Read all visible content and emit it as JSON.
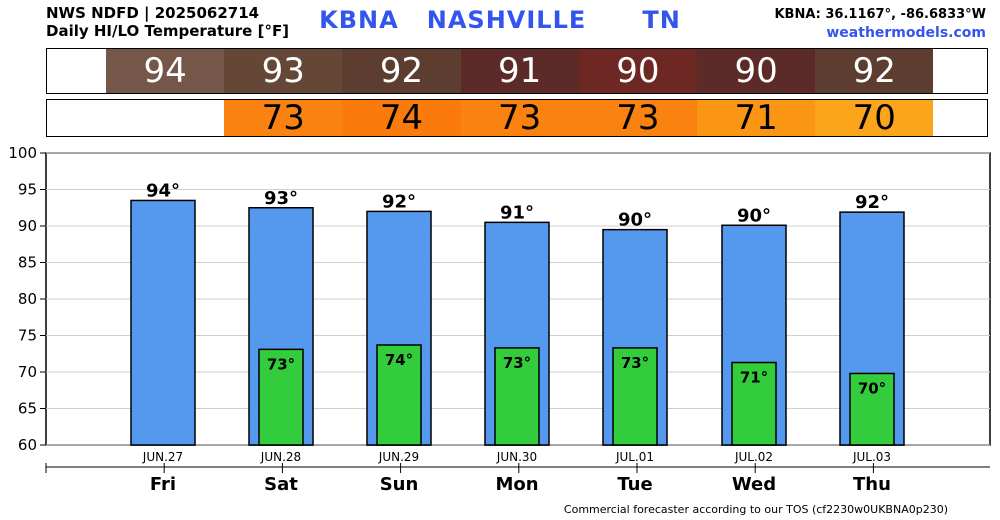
{
  "header": {
    "line1": "NWS NDFD | 2025062714",
    "line2": "Daily HI/LO Temperature [°F]",
    "station": "KBNA",
    "city": "NASHVILLE",
    "state": "TN",
    "coords": "KBNA: 36.1167°, -86.6833°W",
    "site": "weathermodels.com"
  },
  "hi_row": [
    {
      "value": "94",
      "color": "#75574a"
    },
    {
      "value": "93",
      "color": "#654737"
    },
    {
      "value": "92",
      "color": "#5c3d30"
    },
    {
      "value": "91",
      "color": "#5c2b27"
    },
    {
      "value": "90",
      "color": "#6e2823"
    },
    {
      "value": "90",
      "color": "#5c2b27"
    },
    {
      "value": "92",
      "color": "#5c3d30"
    }
  ],
  "lo_row": [
    {
      "value": "",
      "color": "#ffffff"
    },
    {
      "value": "73",
      "color": "#fa8210"
    },
    {
      "value": "74",
      "color": "#fa7a0c"
    },
    {
      "value": "73",
      "color": "#fa8210"
    },
    {
      "value": "73",
      "color": "#fa8210"
    },
    {
      "value": "71",
      "color": "#fb9614"
    },
    {
      "value": "70",
      "color": "#fba51a"
    }
  ],
  "chart_data": {
    "type": "bar",
    "categories": [
      "Fri",
      "Sat",
      "Sun",
      "Mon",
      "Tue",
      "Wed",
      "Thu"
    ],
    "dates": [
      "JUN.27",
      "JUN.28",
      "JUN.29",
      "JUN.30",
      "JUL.01",
      "JUL.02",
      "JUL.03"
    ],
    "series": [
      {
        "values": [
          93.5,
          92.5,
          92,
          90.5,
          89.5,
          90.1,
          91.9
        ],
        "labels": [
          "94°",
          "93°",
          "92°",
          "91°",
          "90°",
          "90°",
          "92°"
        ],
        "color": "#5599ee"
      },
      {
        "values": [
          null,
          73.1,
          73.7,
          73.3,
          73.3,
          71.3,
          69.8
        ],
        "labels": [
          "",
          "73°",
          "74°",
          "73°",
          "73°",
          "71°",
          "70°"
        ],
        "color": "#33cc3d"
      }
    ],
    "ylim": [
      60,
      100
    ],
    "yticks": [
      60,
      65,
      70,
      75,
      80,
      85,
      90,
      95,
      100
    ],
    "grid": true
  },
  "footer": "Commercial forecaster according to our TOS (cf2230w0UKBNA0p230)"
}
